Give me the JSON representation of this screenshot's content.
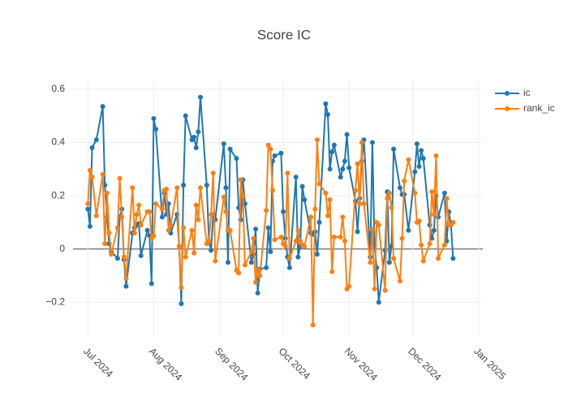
{
  "chart_data": {
    "type": "line",
    "title": "Score IC",
    "x": [
      "2024-07-01",
      "2024-07-02",
      "2024-07-03",
      "2024-07-05",
      "2024-07-08",
      "2024-07-09",
      "2024-07-10",
      "2024-07-11",
      "2024-07-12",
      "2024-07-15",
      "2024-07-16",
      "2024-07-17",
      "2024-07-18",
      "2024-07-19",
      "2024-07-22",
      "2024-07-23",
      "2024-07-24",
      "2024-07-25",
      "2024-07-26",
      "2024-07-29",
      "2024-07-30",
      "2024-07-31",
      "2024-08-01",
      "2024-08-02",
      "2024-08-05",
      "2024-08-06",
      "2024-08-07",
      "2024-08-08",
      "2024-08-09",
      "2024-08-12",
      "2024-08-13",
      "2024-08-14",
      "2024-08-15",
      "2024-08-16",
      "2024-08-19",
      "2024-08-20",
      "2024-08-21",
      "2024-08-22",
      "2024-08-23",
      "2024-08-26",
      "2024-08-27",
      "2024-08-28",
      "2024-08-29",
      "2024-08-30",
      "2024-09-03",
      "2024-09-04",
      "2024-09-05",
      "2024-09-06",
      "2024-09-09",
      "2024-09-10",
      "2024-09-11",
      "2024-09-12",
      "2024-09-13",
      "2024-09-16",
      "2024-09-17",
      "2024-09-18",
      "2024-09-19",
      "2024-09-20",
      "2024-09-23",
      "2024-09-24",
      "2024-09-25",
      "2024-09-26",
      "2024-09-27",
      "2024-09-30",
      "2024-10-01",
      "2024-10-02",
      "2024-10-03",
      "2024-10-04",
      "2024-10-07",
      "2024-10-08",
      "2024-10-09",
      "2024-10-10",
      "2024-10-11",
      "2024-10-14",
      "2024-10-15",
      "2024-10-16",
      "2024-10-17",
      "2024-10-18",
      "2024-10-21",
      "2024-10-22",
      "2024-10-23",
      "2024-10-24",
      "2024-10-25",
      "2024-10-28",
      "2024-10-29",
      "2024-10-30",
      "2024-10-31",
      "2024-11-01",
      "2024-11-04",
      "2024-11-05",
      "2024-11-06",
      "2024-11-07",
      "2024-11-08",
      "2024-11-11",
      "2024-11-12",
      "2024-11-13",
      "2024-11-14",
      "2024-11-15",
      "2024-11-18",
      "2024-11-19",
      "2024-11-20",
      "2024-11-21",
      "2024-11-22",
      "2024-11-25",
      "2024-11-26",
      "2024-11-27",
      "2024-11-29",
      "2024-12-02",
      "2024-12-03",
      "2024-12-04",
      "2024-12-05",
      "2024-12-06",
      "2024-12-09",
      "2024-12-10",
      "2024-12-11",
      "2024-12-12",
      "2024-12-13",
      "2024-12-16",
      "2024-12-17",
      "2024-12-18",
      "2024-12-19",
      "2024-12-20"
    ],
    "series": [
      {
        "name": "ic",
        "color": "#1f77b4",
        "values": [
          0.15,
          0.085,
          0.38,
          0.41,
          0.535,
          0.24,
          0.12,
          0.02,
          -0.01,
          -0.035,
          0.12,
          0.15,
          -0.04,
          -0.14,
          0.06,
          0.08,
          0.09,
          0.095,
          -0.025,
          0.07,
          0.05,
          -0.13,
          0.49,
          0.45,
          0.12,
          0.21,
          0.13,
          0.17,
          0.06,
          0.13,
          0.01,
          -0.205,
          0.24,
          0.5,
          0.41,
          0.42,
          0.38,
          0.44,
          0.57,
          0.24,
          0.03,
          -0.005,
          0.13,
          0.11,
          0.395,
          0.23,
          -0.05,
          0.375,
          0.34,
          0.155,
          0.11,
          0.26,
          0.17,
          -0.05,
          -0.02,
          0.075,
          -0.165,
          -0.075,
          -0.07,
          0.08,
          -0.01,
          0.33,
          0.35,
          0.36,
          0.14,
          0.04,
          -0.03,
          -0.07,
          0.27,
          -0.03,
          0.01,
          0.235,
          0.185,
          0.06,
          0.055,
          0.065,
          -0.02,
          0.1,
          0.545,
          0.505,
          0.3,
          0.365,
          0.39,
          0.27,
          0.3,
          0.33,
          0.43,
          0.305,
          0.18,
          0.065,
          0.19,
          0.33,
          0.41,
          -0.03,
          0.4,
          0.015,
          -0.07,
          -0.2,
          -0.005,
          0.215,
          -0.05,
          0.01,
          0.375,
          0.23,
          0.205,
          0.205,
          0.07,
          0.29,
          0.395,
          0.31,
          0.37,
          0.34,
          0.09,
          0.04,
          0.07,
          0.2,
          0.12,
          0.21,
          0.03,
          0.14,
          0.09,
          -0.035
        ]
      },
      {
        "name": "rank_ic",
        "color": "#ff7f0e",
        "values": [
          0.17,
          0.295,
          0.27,
          0.125,
          0.28,
          0.02,
          0.21,
          0.06,
          -0.02,
          0.08,
          0.265,
          0.12,
          -0.03,
          -0.11,
          0.23,
          0.06,
          0.13,
          0.165,
          0.09,
          0.14,
          0.14,
          0.04,
          0.05,
          0.17,
          0.15,
          0.22,
          0.225,
          0.07,
          0.09,
          0.23,
          0.01,
          -0.145,
          0.08,
          -0.03,
          0.07,
          -0.015,
          0.165,
          0.11,
          0.23,
          0.02,
          0.03,
          0.13,
          0.285,
          -0.045,
          0.195,
          0.14,
          0.07,
          0.07,
          -0.08,
          -0.09,
          0.26,
          0.2,
          -0.06,
          -0.01,
          0.04,
          -0.125,
          -0.08,
          -0.1,
          0.145,
          0.39,
          0.375,
          0.22,
          0.035,
          0.045,
          0.02,
          0.01,
          0.285,
          -0.035,
          0.03,
          0.07,
          0.03,
          0.015,
          0.01,
          0.12,
          -0.285,
          0.15,
          0.41,
          0.245,
          0.21,
          0.125,
          0.185,
          -0.085,
          0.045,
          0.045,
          0.12,
          0.03,
          -0.15,
          -0.14,
          0.22,
          0.32,
          0.17,
          0.4,
          0.17,
          -0.05,
          0.075,
          -0.15,
          0.1,
          0.09,
          -0.155,
          0.19,
          0.21,
          0.155,
          -0.035,
          -0.12,
          0.04,
          0.255,
          0.335,
          0.21,
          0.1,
          0.105,
          0.015,
          -0.045,
          0.02,
          0.215,
          0.13,
          0.35,
          -0.035,
          0.015,
          0.19,
          0.09,
          0.09,
          0.1
        ]
      }
    ],
    "xlim": [
      "2024-06-24",
      "2025-01-03"
    ],
    "xticks": [
      {
        "value": "2024-07-01",
        "label": "Jul 2024"
      },
      {
        "value": "2024-08-01",
        "label": "Aug 2024"
      },
      {
        "value": "2024-09-01",
        "label": "Sep 2024"
      },
      {
        "value": "2024-10-01",
        "label": "Oct 2024"
      },
      {
        "value": "2024-11-01",
        "label": "Nov 2024"
      },
      {
        "value": "2024-12-01",
        "label": "Dec 2024"
      },
      {
        "value": "2025-01-01",
        "label": "Jan 2025"
      }
    ],
    "ylim": [
      -0.33,
      0.63
    ],
    "yticks": [
      {
        "value": -0.2,
        "label": "−0.2"
      },
      0,
      0.2,
      0.4,
      0.6
    ],
    "grid": true,
    "legend": "top-right"
  }
}
